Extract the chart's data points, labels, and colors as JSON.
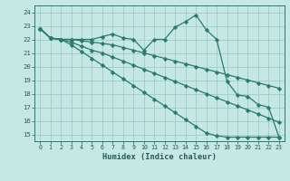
{
  "xlabel": "Humidex (Indice chaleur)",
  "bg_color": "#c5e8e5",
  "grid_color": "#a0ccca",
  "line_color": "#2a7a6e",
  "xlim": [
    -0.5,
    23.5
  ],
  "ylim": [
    14.5,
    24.5
  ],
  "xticks": [
    0,
    1,
    2,
    3,
    4,
    5,
    6,
    7,
    8,
    9,
    10,
    11,
    12,
    13,
    14,
    15,
    16,
    17,
    18,
    19,
    20,
    21,
    22,
    23
  ],
  "yticks": [
    15,
    16,
    17,
    18,
    19,
    20,
    21,
    22,
    23,
    24
  ],
  "series": [
    [
      22.8,
      22.1,
      22.0,
      22.0,
      22.0,
      22.0,
      22.2,
      22.4,
      22.1,
      22.0,
      21.2,
      22.0,
      22.0,
      22.9,
      23.3,
      23.8,
      22.7,
      22.0,
      18.9,
      17.9,
      17.8,
      17.2,
      17.0,
      14.8
    ],
    [
      22.8,
      22.1,
      22.0,
      22.0,
      21.9,
      21.8,
      21.7,
      21.6,
      21.4,
      21.2,
      21.0,
      20.8,
      20.6,
      20.4,
      20.2,
      20.0,
      19.8,
      19.6,
      19.4,
      19.2,
      19.0,
      18.8,
      18.6,
      18.4
    ],
    [
      22.8,
      22.1,
      22.0,
      21.8,
      21.5,
      21.2,
      21.0,
      20.7,
      20.4,
      20.1,
      19.8,
      19.5,
      19.2,
      18.9,
      18.6,
      18.3,
      18.0,
      17.7,
      17.4,
      17.1,
      16.8,
      16.5,
      16.2,
      15.9
    ],
    [
      22.8,
      22.1,
      22.0,
      21.6,
      21.1,
      20.6,
      20.1,
      19.6,
      19.1,
      18.6,
      18.1,
      17.6,
      17.1,
      16.6,
      16.1,
      15.6,
      15.1,
      14.9,
      14.8,
      14.8,
      14.8,
      14.8,
      14.8,
      14.8
    ]
  ],
  "markersize": 2.5,
  "linewidth": 0.9
}
